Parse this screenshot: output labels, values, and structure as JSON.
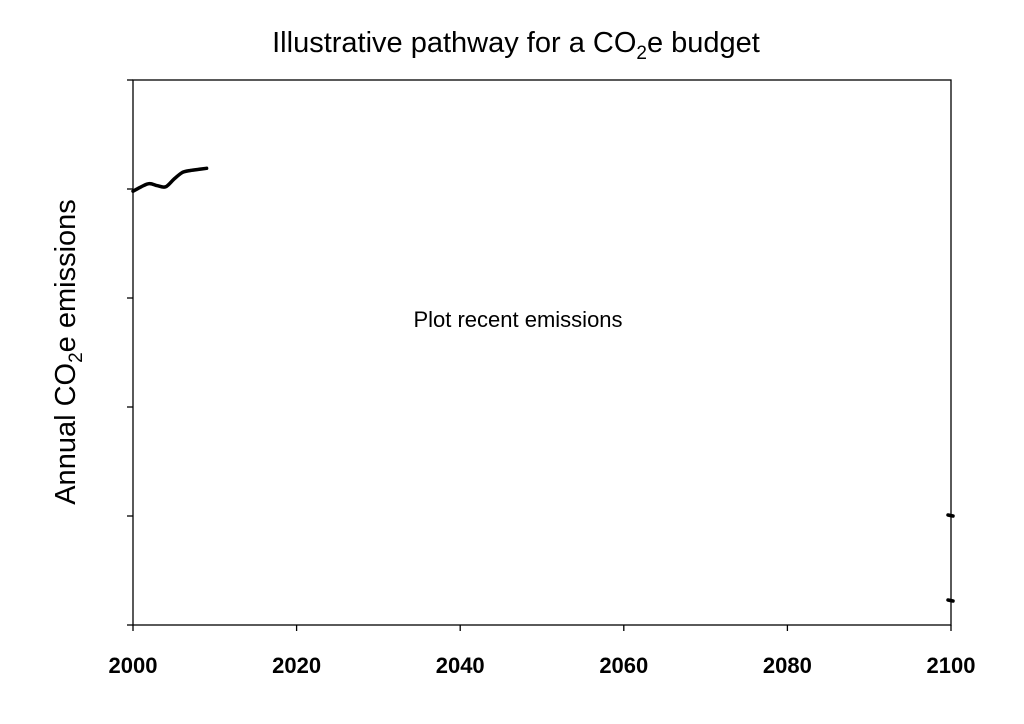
{
  "chart_data": {
    "type": "line",
    "title": {
      "prefix": "Illustrative pathway for a CO",
      "subscript": "2",
      "suffix": "e budget"
    },
    "ylabel": {
      "prefix": "Annual CO",
      "subscript": "2",
      "suffix": "e emissions"
    },
    "xlabel": "",
    "xlim": [
      2000,
      2100
    ],
    "xticks": [
      "2000",
      "2020",
      "2040",
      "2060",
      "2080",
      "2100"
    ],
    "ylim": [
      0,
      5
    ],
    "yticks_unlabeled": [
      0,
      1,
      2,
      3,
      4,
      5
    ],
    "grid": false,
    "legend": "none",
    "annotation": "Plot recent emissions",
    "series": [
      {
        "x": [
          2000,
          2001,
          2002,
          2003,
          2004,
          2005,
          2006,
          2007,
          2008,
          2009
        ],
        "values": [
          3.98,
          4.02,
          4.05,
          4.03,
          4.02,
          4.09,
          4.15,
          4.17,
          4.18,
          4.19
        ]
      }
    ],
    "end_marks": [
      {
        "x": 2100,
        "y": 1.0
      },
      {
        "x": 2100,
        "y": 0.22
      }
    ],
    "colors": {
      "line": "#000000",
      "axis": "#000000"
    }
  }
}
